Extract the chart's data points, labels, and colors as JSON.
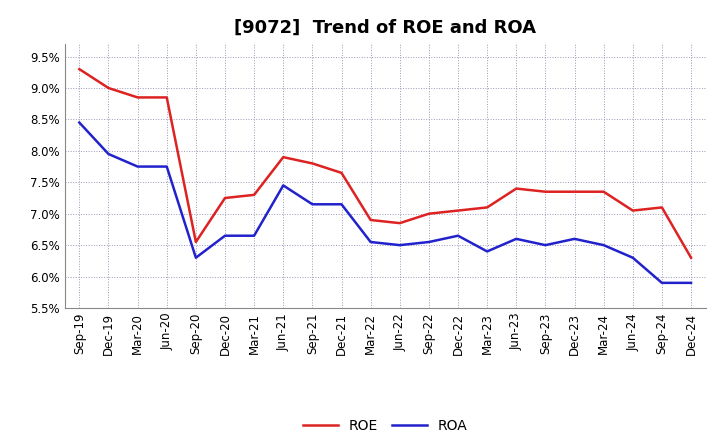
{
  "title": "[9072]  Trend of ROE and ROA",
  "x_labels": [
    "Sep-19",
    "Dec-19",
    "Mar-20",
    "Jun-20",
    "Sep-20",
    "Dec-20",
    "Mar-21",
    "Jun-21",
    "Sep-21",
    "Dec-21",
    "Mar-22",
    "Jun-22",
    "Sep-22",
    "Dec-22",
    "Mar-23",
    "Jun-23",
    "Sep-23",
    "Dec-23",
    "Mar-24",
    "Jun-24",
    "Sep-24",
    "Dec-24"
  ],
  "roe": [
    9.3,
    9.0,
    8.85,
    8.85,
    6.55,
    7.25,
    7.3,
    7.9,
    7.8,
    7.65,
    6.9,
    6.85,
    7.0,
    7.05,
    7.1,
    7.4,
    7.35,
    7.35,
    7.35,
    7.05,
    7.1,
    6.3
  ],
  "roa": [
    8.45,
    7.95,
    7.75,
    7.75,
    6.3,
    6.65,
    6.65,
    7.45,
    7.15,
    7.15,
    6.55,
    6.5,
    6.55,
    6.65,
    6.4,
    6.6,
    6.5,
    6.6,
    6.5,
    6.3,
    5.9,
    5.9
  ],
  "roe_color": "#dd2222",
  "roa_color": "#2222cc",
  "background_color": "#ffffff",
  "grid_color": "#9999bb",
  "ylim": [
    5.5,
    9.7
  ],
  "yticks": [
    5.5,
    6.0,
    6.5,
    7.0,
    7.5,
    8.0,
    8.5,
    9.0,
    9.5
  ],
  "title_fontsize": 13,
  "tick_fontsize": 8.5,
  "legend_fontsize": 10,
  "line_width": 1.8
}
